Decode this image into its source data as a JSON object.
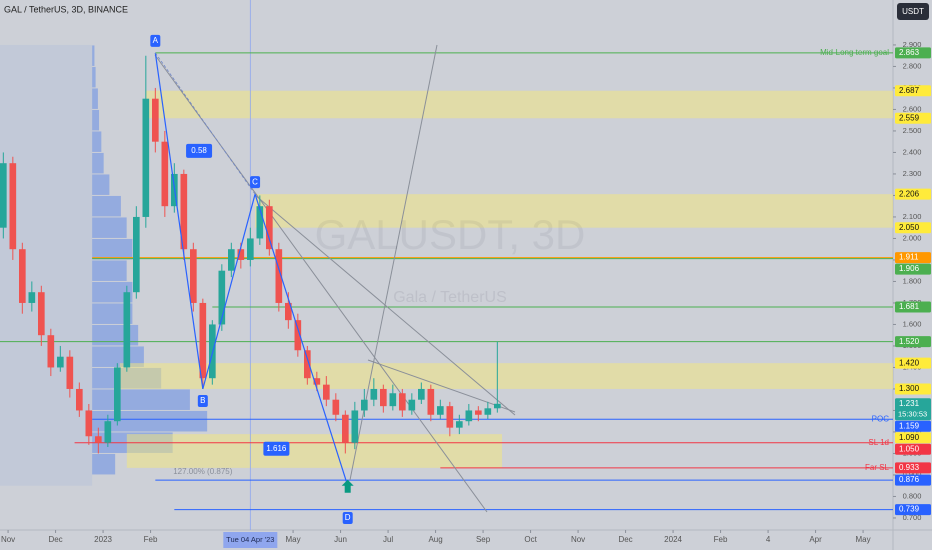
{
  "header": {
    "symbol": "GAL / TetherUS, 3D, BINANCE",
    "currency_button": "USDT"
  },
  "watermark": {
    "title": "GALUSDT, 3D",
    "subtitle": "Gala / TetherUS"
  },
  "chart_data": {
    "type": "candlestick",
    "x": [
      -0.1,
      0.1,
      0.3,
      0.5,
      0.7,
      0.9,
      1.1,
      1.3,
      1.5,
      1.7,
      1.9,
      2.1,
      2.3,
      2.5,
      2.7,
      2.9,
      3.1,
      3.3,
      3.5,
      3.7,
      3.9,
      4.1,
      4.3,
      4.5,
      4.7,
      4.9,
      5.1,
      5.3,
      5.5,
      5.7,
      5.9,
      6.1,
      6.3,
      6.5,
      6.7,
      6.9,
      7.1,
      7.3,
      7.5,
      7.7,
      7.9,
      8.1,
      8.3,
      8.5,
      8.7,
      8.9,
      9.1,
      9.3,
      9.5,
      9.7,
      9.9,
      10.1,
      10.3
    ],
    "open": [
      2.05,
      2.35,
      1.95,
      1.7,
      1.75,
      1.55,
      1.4,
      1.45,
      1.3,
      1.2,
      1.08,
      1.05,
      1.15,
      1.4,
      1.75,
      2.1,
      2.65,
      2.45,
      2.15,
      2.3,
      1.95,
      1.7,
      1.35,
      1.6,
      1.85,
      1.95,
      1.9,
      2.0,
      2.15,
      1.95,
      1.7,
      1.62,
      1.48,
      1.35,
      1.32,
      1.25,
      1.18,
      1.05,
      1.2,
      1.25,
      1.3,
      1.22,
      1.28,
      1.2,
      1.25,
      1.3,
      1.18,
      1.22,
      1.12,
      1.15,
      1.2,
      1.18,
      1.21
    ],
    "high": [
      2.4,
      2.38,
      1.98,
      1.8,
      1.78,
      1.58,
      1.5,
      1.48,
      1.33,
      1.23,
      1.12,
      1.18,
      1.42,
      1.78,
      2.15,
      2.85,
      2.7,
      2.5,
      2.35,
      2.32,
      1.98,
      1.72,
      1.62,
      1.88,
      1.98,
      1.98,
      2.05,
      2.2,
      2.18,
      1.98,
      1.75,
      1.65,
      1.5,
      1.38,
      1.36,
      1.28,
      1.2,
      1.24,
      1.3,
      1.35,
      1.32,
      1.32,
      1.3,
      1.28,
      1.33,
      1.32,
      1.25,
      1.24,
      1.18,
      1.23,
      1.22,
      1.24,
      1.52
    ],
    "low": [
      2.0,
      1.9,
      1.65,
      1.66,
      1.5,
      1.36,
      1.38,
      1.26,
      1.17,
      1.04,
      1.0,
      1.03,
      1.13,
      1.38,
      1.72,
      2.05,
      2.4,
      2.1,
      2.12,
      1.9,
      1.66,
      1.3,
      1.32,
      1.57,
      1.82,
      1.86,
      1.87,
      1.97,
      1.92,
      1.66,
      1.58,
      1.45,
      1.32,
      1.29,
      1.22,
      1.15,
      1.0,
      1.02,
      1.17,
      1.22,
      1.19,
      1.2,
      1.17,
      1.18,
      1.23,
      1.15,
      1.16,
      1.08,
      1.09,
      1.13,
      1.15,
      1.16,
      1.19
    ],
    "close": [
      2.35,
      1.95,
      1.7,
      1.75,
      1.55,
      1.4,
      1.45,
      1.3,
      1.2,
      1.08,
      1.05,
      1.15,
      1.4,
      1.75,
      2.1,
      2.65,
      2.45,
      2.15,
      2.3,
      1.95,
      1.7,
      1.35,
      1.6,
      1.85,
      1.95,
      1.9,
      2.0,
      2.15,
      1.95,
      1.7,
      1.62,
      1.48,
      1.35,
      1.32,
      1.25,
      1.18,
      1.05,
      1.2,
      1.25,
      1.3,
      1.22,
      1.28,
      1.2,
      1.25,
      1.3,
      1.18,
      1.22,
      1.12,
      1.15,
      1.2,
      1.18,
      1.21,
      1.231
    ],
    "up_color": "#26a69a",
    "down_color": "#ef5350",
    "xlim": [
      -0.17,
      18.63
    ],
    "xticks": [
      {
        "value": 0,
        "label": "Nov"
      },
      {
        "value": 1,
        "label": "Dec"
      },
      {
        "value": 2,
        "label": "2023"
      },
      {
        "value": 3,
        "label": "Feb"
      },
      {
        "value": 6,
        "label": "May"
      },
      {
        "value": 7,
        "label": "Jun"
      },
      {
        "value": 8,
        "label": "Jul"
      },
      {
        "value": 9,
        "label": "Aug"
      },
      {
        "value": 10,
        "label": "Sep"
      },
      {
        "value": 11,
        "label": "Oct"
      },
      {
        "value": 12,
        "label": "Nov"
      },
      {
        "value": 13,
        "label": "Dec"
      },
      {
        "value": 14,
        "label": "2024"
      },
      {
        "value": 15,
        "label": "Feb"
      },
      {
        "value": 16,
        "label": "4"
      },
      {
        "value": 17,
        "label": "Apr"
      },
      {
        "value": 18,
        "label": "May"
      }
    ],
    "ylim": [
      0.644,
      3.109
    ],
    "yticks": [
      {
        "value": 0.7,
        "label": "0.700"
      },
      {
        "value": 0.8,
        "label": "0.800"
      },
      {
        "value": 0.9,
        "label": "0.900"
      },
      {
        "value": 1.0,
        "label": "1.000"
      },
      {
        "value": 1.1,
        "label": "1.100"
      },
      {
        "value": 1.2,
        "label": "1.200"
      },
      {
        "value": 1.3,
        "label": "1.300"
      },
      {
        "value": 1.4,
        "label": "1.400"
      },
      {
        "value": 1.5,
        "label": "1.500"
      },
      {
        "value": 1.6,
        "label": "1.600"
      },
      {
        "value": 1.7,
        "label": "1.700"
      },
      {
        "value": 1.8,
        "label": "1.800"
      },
      {
        "value": 1.9,
        "label": "1.900"
      },
      {
        "value": 2.0,
        "label": "2.000"
      },
      {
        "value": 2.1,
        "label": "2.100"
      },
      {
        "value": 2.2,
        "label": "2.200"
      },
      {
        "value": 2.3,
        "label": "2.300"
      },
      {
        "value": 2.4,
        "label": "2.400"
      },
      {
        "value": 2.5,
        "label": "2.500"
      },
      {
        "value": 2.6,
        "label": "2.600"
      },
      {
        "value": 2.7,
        "label": "2.700"
      },
      {
        "value": 2.8,
        "label": "2.800"
      },
      {
        "value": 2.9,
        "label": "2.900"
      }
    ],
    "crosshair": {
      "x": 5.1,
      "label": "Tue 04 Apr '23"
    },
    "zones": [
      {
        "low": 2.559,
        "high": 2.687,
        "from": 2.9
      },
      {
        "low": 2.05,
        "high": 2.206,
        "from": 5.2
      },
      {
        "low": 1.3,
        "high": 1.42,
        "from": 2.35
      },
      {
        "low": 0.933,
        "high": 1.09,
        "from": 2.5,
        "to": 10.4
      }
    ],
    "levels": [
      {
        "value": 2.863,
        "label": "2.863",
        "color": "#4caf50",
        "line_from": 3.1,
        "note": "Mid-Long term goal"
      },
      {
        "value": 2.687,
        "label": "2.687",
        "color": "#ffeb3b"
      },
      {
        "value": 2.559,
        "label": "2.559",
        "color": "#ffeb3b"
      },
      {
        "value": 2.206,
        "label": "2.206",
        "color": "#ffeb3b"
      },
      {
        "value": 2.05,
        "label": "2.050",
        "color": "#ffeb3b"
      },
      {
        "value": 1.911,
        "label": "1.911",
        "color": "#ff9800",
        "line_from": 1.77
      },
      {
        "value": 1.906,
        "label": "1.906",
        "color": "#4caf50",
        "line_from": 1.77
      },
      {
        "value": 1.681,
        "label": "1.681",
        "color": "#4caf50",
        "line_from": 4.3
      },
      {
        "value": 1.52,
        "label": "1.520",
        "color": "#4caf50",
        "line_from": -0.17
      },
      {
        "value": 1.42,
        "label": "1.420",
        "color": "#ffeb3b"
      },
      {
        "value": 1.3,
        "label": "1.300",
        "color": "#ffeb3b"
      },
      {
        "value": 1.231,
        "label": "1.231",
        "color": "#26a69a",
        "countdown": "15:30:53"
      },
      {
        "value": 1.159,
        "label": "1.159",
        "color": "#2962ff",
        "line_from": 1.77,
        "note": "POC"
      },
      {
        "value": 1.09,
        "label": "1.090",
        "color": "#ffeb3b"
      },
      {
        "value": 1.05,
        "label": "1.050",
        "color": "#f23645",
        "line_from": 1.4,
        "note": "SL 1d"
      },
      {
        "value": 0.933,
        "label": "0.933",
        "color": "#f23645",
        "line_from": 9.1,
        "note": "Far SL"
      },
      {
        "value": 0.876,
        "label": "0.876",
        "color": "#2962ff",
        "line_from": 3.1
      },
      {
        "value": 0.739,
        "label": "0.739",
        "color": "#2962ff",
        "line_from": 3.5
      }
    ],
    "pattern": {
      "points": [
        {
          "name": "A",
          "x": 3.1,
          "y": 2.863
        },
        {
          "name": "B",
          "x": 4.1,
          "y": 1.3
        },
        {
          "name": "C",
          "x": 5.2,
          "y": 2.206
        },
        {
          "name": "D",
          "x": 7.15,
          "y": 0.85
        }
      ],
      "ratios": [
        "0.58",
        "1.616"
      ],
      "extension_label": "127.00% (0.875)"
    },
    "volume_profile": {
      "prices": [
        0.95,
        1.05,
        1.15,
        1.25,
        1.35,
        1.45,
        1.55,
        1.65,
        1.75,
        1.85,
        1.95,
        2.05,
        2.15,
        2.25,
        2.35,
        2.45,
        2.55,
        2.65,
        2.75,
        2.85
      ],
      "values": [
        20,
        70,
        100,
        85,
        60,
        45,
        40,
        35,
        35,
        30,
        35,
        30,
        25,
        15,
        10,
        8,
        6,
        5,
        3,
        2
      ],
      "color": "#4f7fe8"
    }
  }
}
